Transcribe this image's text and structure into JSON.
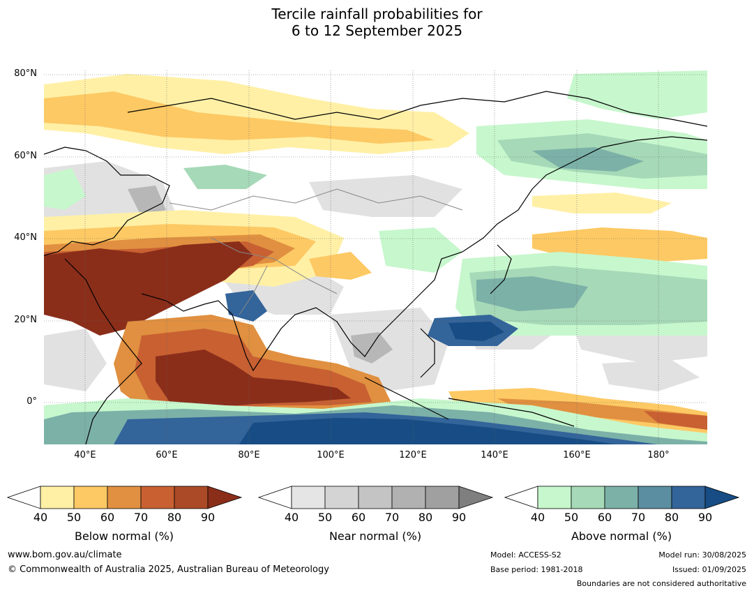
{
  "title": {
    "line1": "Tercile rainfall probabilities for",
    "line2": "6 to 12 September 2025"
  },
  "map": {
    "lon_range": [
      30,
      192
    ],
    "lat_range": [
      -10,
      81
    ],
    "lat_labels": [
      "80°N",
      "60°N",
      "40°N",
      "20°N",
      "0°"
    ],
    "lon_labels": [
      "40°E",
      "60°E",
      "80°E",
      "100°E",
      "120°E",
      "140°E",
      "160°E",
      "180°"
    ]
  },
  "colorbars": [
    {
      "id": "below",
      "title": "Below normal (%)",
      "ticks": [
        "40",
        "50",
        "60",
        "70",
        "80",
        "90"
      ],
      "colors": [
        "#fff0a6",
        "#fdc964",
        "#e09040",
        "#c86032",
        "#aa4a27",
        "#8a2e1a"
      ]
    },
    {
      "id": "near",
      "title": "Near normal (%)",
      "ticks": [
        "40",
        "50",
        "60",
        "70",
        "80",
        "90"
      ],
      "colors": [
        "#e5e5e5",
        "#d4d4d4",
        "#c4c4c4",
        "#b1b1b1",
        "#a0a0a0",
        "#7f7f7f"
      ]
    },
    {
      "id": "above",
      "title": "Above normal (%)",
      "ticks": [
        "40",
        "50",
        "60",
        "70",
        "80",
        "90"
      ],
      "colors": [
        "#c7f7cd",
        "#a6d9b7",
        "#7cb1a8",
        "#5a8ea0",
        "#33649a",
        "#174d84"
      ]
    }
  ],
  "footer": {
    "website": "www.bom.gov.au/climate",
    "copyright": "© Commonwealth of Australia 2025, Australian Bureau of Meteorology",
    "model": "Model: ACCESS-S2",
    "base_period": "Base period: 1981-2018",
    "model_run": "Model run: 30/08/2025",
    "issued": "Issued: 01/09/2025",
    "disclaimer": "Boundaries are not considered authoritative"
  }
}
